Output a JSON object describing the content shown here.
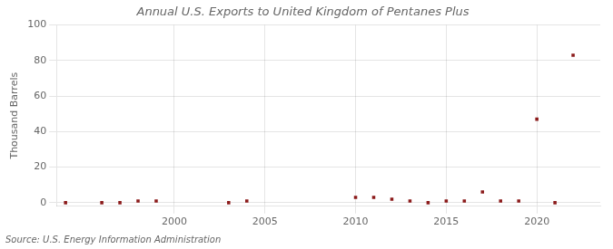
{
  "chart_data": {
    "type": "scatter",
    "title": "Annual U.S. Exports to United Kingdom of Pentanes Plus",
    "ylabel": "Thousand Barrels",
    "annotations": [
      "Source: U.S. Energy Information Administration"
    ],
    "x": [
      1994,
      1996,
      1997,
      1998,
      1999,
      2003,
      2004,
      2010,
      2011,
      2012,
      2013,
      2014,
      2015,
      2016,
      2017,
      2018,
      2019,
      2020,
      2021,
      2022
    ],
    "values": [
      0,
      0,
      0,
      1,
      1,
      0,
      1,
      3,
      3,
      2,
      1,
      0,
      1,
      1,
      6,
      1,
      1,
      47,
      0,
      83
    ],
    "color": "#8b1a1a",
    "marker": "square",
    "xlim": [
      1993.5,
      2023.5
    ],
    "xticks": [
      2000,
      2005,
      2010,
      2015,
      2020
    ],
    "ylim": [
      -2,
      100
    ],
    "yticks": [
      0,
      20,
      40,
      60,
      80,
      100
    ],
    "grid": true
  }
}
